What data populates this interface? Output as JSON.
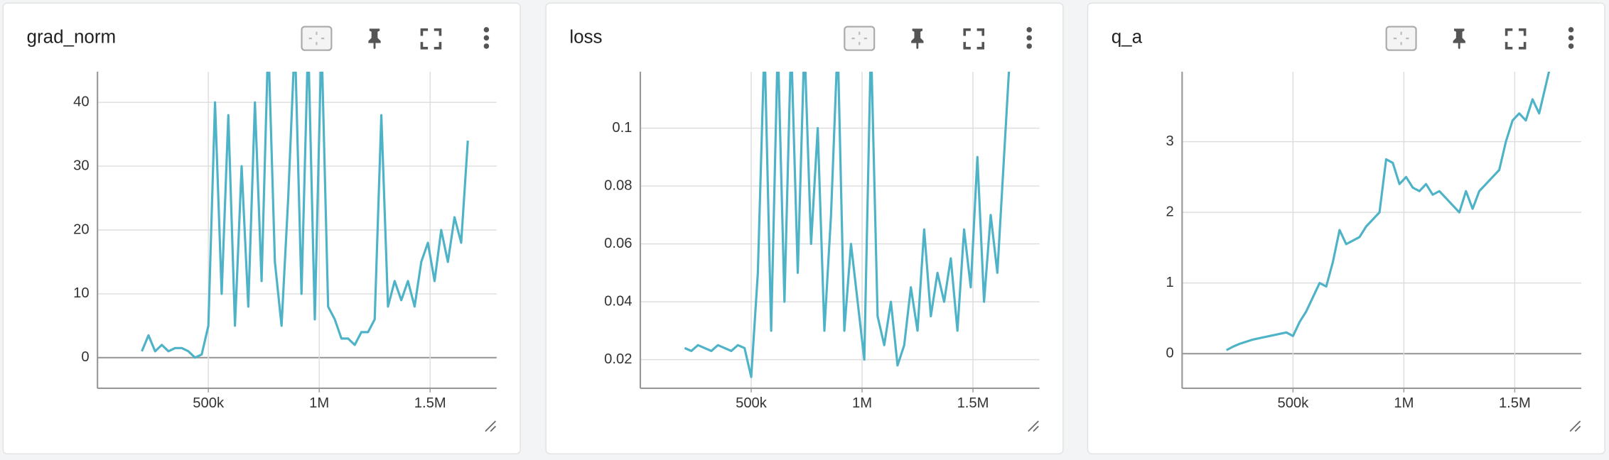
{
  "chart_data": [
    {
      "type": "line",
      "title": "grad_norm",
      "x": [
        200000,
        230000,
        260000,
        290000,
        320000,
        350000,
        380000,
        410000,
        440000,
        470000,
        500000,
        530000,
        560000,
        590000,
        620000,
        650000,
        680000,
        710000,
        740000,
        770000,
        800000,
        830000,
        860000,
        890000,
        920000,
        950000,
        980000,
        1010000,
        1040000,
        1070000,
        1100000,
        1130000,
        1160000,
        1190000,
        1220000,
        1250000,
        1280000,
        1310000,
        1340000,
        1370000,
        1400000,
        1430000,
        1460000,
        1490000,
        1520000,
        1550000,
        1580000,
        1610000,
        1640000,
        1670000
      ],
      "series": [
        {
          "color": "#4fb3c8",
          "values": [
            1,
            3.5,
            1,
            2,
            1,
            1.5,
            1.5,
            1,
            0,
            0.5,
            5,
            40,
            10,
            38,
            5,
            30,
            8,
            40,
            12,
            50,
            15,
            5,
            25,
            50,
            10,
            50,
            6,
            50,
            8,
            6,
            3,
            3,
            2,
            4,
            4,
            6,
            38,
            8,
            12,
            9,
            12,
            8,
            15,
            18,
            12,
            20,
            15,
            22,
            18,
            34
          ]
        }
      ],
      "xlim": [
        0,
        1800000
      ],
      "ylim": [
        -4.8,
        44.8
      ],
      "xticks": [
        {
          "value": 500000,
          "label": "500k"
        },
        {
          "value": 1000000,
          "label": "1M"
        },
        {
          "value": 1500000,
          "label": "1.5M"
        }
      ],
      "yticks": [
        0,
        10,
        20,
        30,
        40
      ],
      "grid": true
    },
    {
      "type": "line",
      "title": "loss",
      "x": [
        200000,
        230000,
        260000,
        290000,
        320000,
        350000,
        380000,
        410000,
        440000,
        470000,
        500000,
        530000,
        560000,
        590000,
        620000,
        650000,
        680000,
        710000,
        740000,
        770000,
        800000,
        830000,
        860000,
        890000,
        920000,
        950000,
        980000,
        1010000,
        1040000,
        1070000,
        1100000,
        1130000,
        1160000,
        1190000,
        1220000,
        1250000,
        1280000,
        1310000,
        1340000,
        1370000,
        1400000,
        1430000,
        1460000,
        1490000,
        1520000,
        1550000,
        1580000,
        1610000,
        1640000,
        1670000
      ],
      "series": [
        {
          "color": "#4fb3c8",
          "values": [
            0.024,
            0.023,
            0.025,
            0.024,
            0.023,
            0.025,
            0.024,
            0.023,
            0.025,
            0.024,
            0.014,
            0.05,
            0.13,
            0.03,
            0.13,
            0.04,
            0.13,
            0.05,
            0.13,
            0.06,
            0.1,
            0.03,
            0.07,
            0.13,
            0.03,
            0.06,
            0.04,
            0.02,
            0.13,
            0.035,
            0.025,
            0.04,
            0.018,
            0.025,
            0.045,
            0.03,
            0.065,
            0.035,
            0.05,
            0.04,
            0.055,
            0.03,
            0.065,
            0.045,
            0.09,
            0.04,
            0.07,
            0.05,
            0.09,
            0.13
          ]
        }
      ],
      "xlim": [
        0,
        1800000
      ],
      "ylim": [
        0.0101,
        0.1195
      ],
      "xticks": [
        {
          "value": 500000,
          "label": "500k"
        },
        {
          "value": 1000000,
          "label": "1M"
        },
        {
          "value": 1500000,
          "label": "1.5M"
        }
      ],
      "yticks": [
        0.02,
        0.04,
        0.06,
        0.08,
        0.1
      ],
      "grid": true
    },
    {
      "type": "line",
      "title": "q_a",
      "x": [
        200000,
        230000,
        260000,
        290000,
        320000,
        350000,
        380000,
        410000,
        440000,
        470000,
        500000,
        530000,
        560000,
        590000,
        620000,
        650000,
        680000,
        710000,
        740000,
        770000,
        800000,
        830000,
        860000,
        890000,
        920000,
        950000,
        980000,
        1010000,
        1040000,
        1070000,
        1100000,
        1130000,
        1160000,
        1190000,
        1220000,
        1250000,
        1280000,
        1310000,
        1340000,
        1370000,
        1400000,
        1430000,
        1460000,
        1490000,
        1520000,
        1550000,
        1580000,
        1610000,
        1640000,
        1670000
      ],
      "series": [
        {
          "color": "#4fb3c8",
          "values": [
            0.05,
            0.1,
            0.14,
            0.17,
            0.2,
            0.22,
            0.24,
            0.26,
            0.28,
            0.3,
            0.25,
            0.45,
            0.6,
            0.8,
            1.0,
            0.95,
            1.3,
            1.75,
            1.55,
            1.6,
            1.65,
            1.8,
            1.9,
            2.0,
            2.75,
            2.7,
            2.4,
            2.5,
            2.35,
            2.3,
            2.4,
            2.25,
            2.3,
            2.2,
            2.1,
            2.0,
            2.3,
            2.05,
            2.3,
            2.4,
            2.5,
            2.6,
            3.0,
            3.3,
            3.4,
            3.3,
            3.6,
            3.4,
            3.8,
            4.2
          ]
        }
      ],
      "xlim": [
        0,
        1800000
      ],
      "ylim": [
        -0.49,
        3.99
      ],
      "xticks": [
        {
          "value": 500000,
          "label": "500k"
        },
        {
          "value": 1000000,
          "label": "1M"
        },
        {
          "value": 1500000,
          "label": "1.5M"
        }
      ],
      "yticks": [
        0,
        1,
        2,
        3
      ],
      "grid": true
    }
  ]
}
